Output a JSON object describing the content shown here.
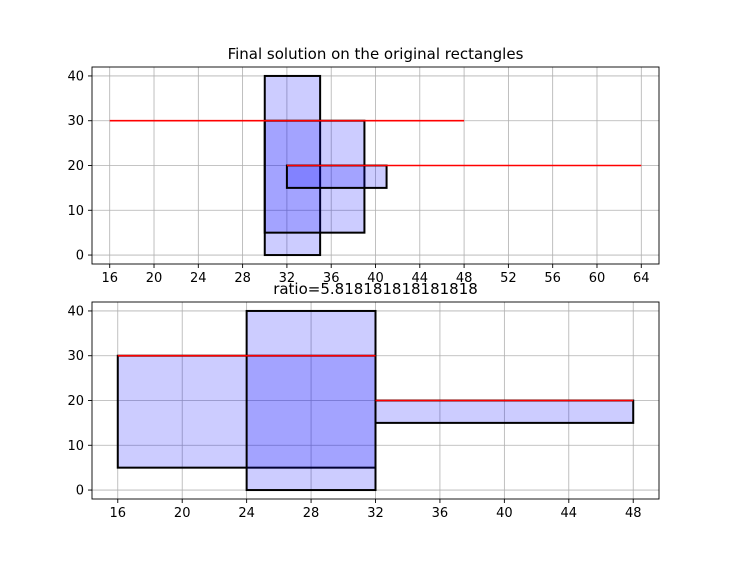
{
  "chart_data": [
    {
      "type": "rectangles",
      "title": "Final solution on the original rectangles",
      "xlim": [
        14.4,
        65.6
      ],
      "ylim": [
        -2,
        42
      ],
      "xticks": [
        16,
        20,
        24,
        28,
        32,
        36,
        40,
        44,
        48,
        52,
        56,
        60,
        64
      ],
      "yticks": [
        0,
        10,
        20,
        30,
        40
      ],
      "grid": true,
      "rects": [
        {
          "x0": 30,
          "x1": 35,
          "y0": 0,
          "y1": 40
        },
        {
          "x0": 30,
          "x1": 39,
          "y0": 5,
          "y1": 30
        },
        {
          "x0": 32,
          "x1": 41,
          "y0": 15,
          "y1": 20
        }
      ],
      "red_lines": [
        {
          "x0": 16,
          "x1": 48,
          "y": 30
        },
        {
          "x0": 32,
          "x1": 64,
          "y": 20
        }
      ],
      "colors": {
        "fill": "#0000ff",
        "edge": "#000000",
        "line": "#ff0000",
        "grid": "#b0b0b0"
      }
    },
    {
      "type": "rectangles",
      "title": "ratio=5.818181818181818",
      "xlim": [
        14.4,
        49.6
      ],
      "ylim": [
        -2,
        42
      ],
      "xticks": [
        16,
        20,
        24,
        28,
        32,
        36,
        40,
        44,
        48
      ],
      "yticks": [
        0,
        10,
        20,
        30,
        40
      ],
      "grid": true,
      "rects": [
        {
          "x0": 16,
          "x1": 32,
          "y0": 5,
          "y1": 30
        },
        {
          "x0": 24,
          "x1": 32,
          "y0": 0,
          "y1": 40
        },
        {
          "x0": 32,
          "x1": 48,
          "y0": 15,
          "y1": 20
        }
      ],
      "red_lines": [
        {
          "x0": 16,
          "x1": 32,
          "y": 30
        },
        {
          "x0": 32,
          "x1": 48,
          "y": 20
        }
      ],
      "colors": {
        "fill": "#0000ff",
        "edge": "#000000",
        "line": "#ff0000",
        "grid": "#b0b0b0"
      }
    }
  ]
}
